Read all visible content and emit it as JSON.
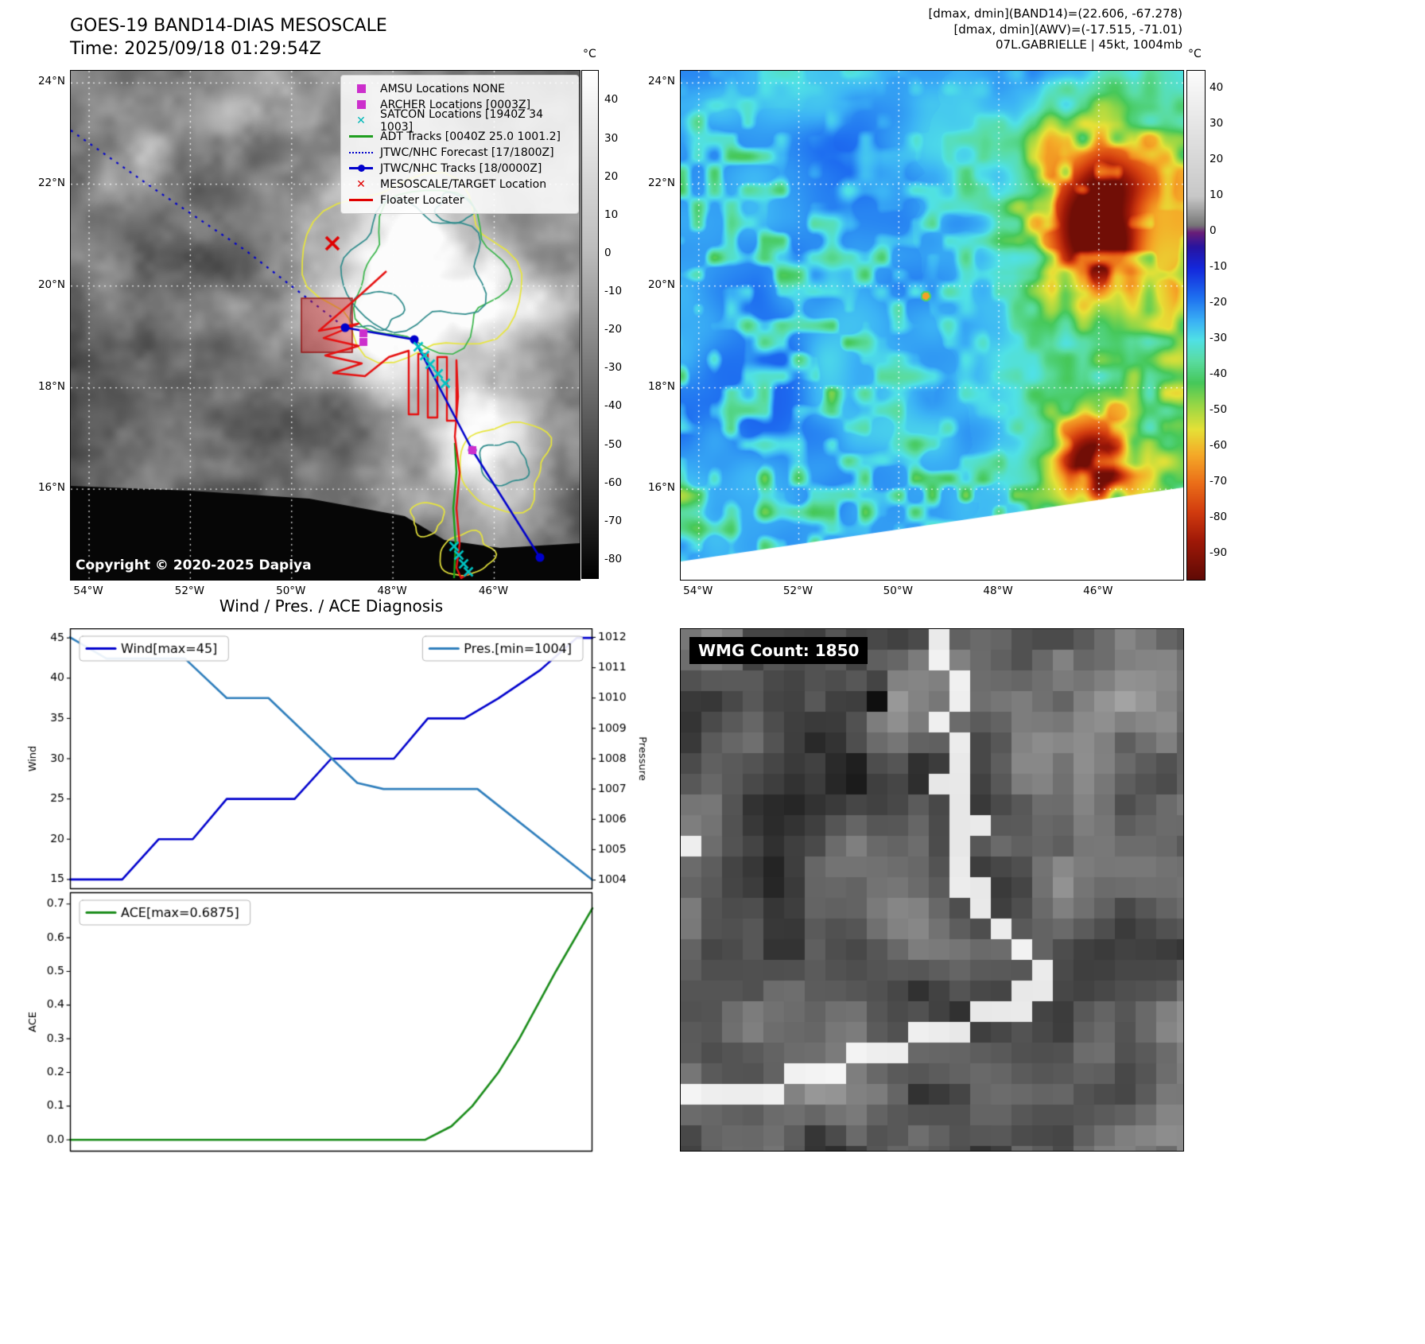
{
  "band14_panel": {
    "title_line1": "GOES-19 BAND14-DIAS MESOSCALE",
    "title_line2": "Time: 2025/09/18 01:29:54Z",
    "copyright": "Copyright © 2020-2025 Dapiya",
    "colorbar": {
      "unit": "°C",
      "ticks": [
        40,
        30,
        20,
        10,
        0,
        -10,
        -20,
        -30,
        -40,
        -50,
        -60,
        -70,
        -80
      ],
      "top_value": 48,
      "bottom_value": -85,
      "top_color": "#ffffff",
      "bottom_color": "#000000"
    },
    "lat_labels": [
      "24°N",
      "22°N",
      "20°N",
      "18°N",
      "16°N"
    ],
    "lon_labels": [
      "54°W",
      "52°W",
      "50°W",
      "48°W",
      "46°W"
    ],
    "legend": [
      {
        "label": "AMSU Locations NONE",
        "marker": "square",
        "color": "#cc2fcc"
      },
      {
        "label": "ARCHER Locations [0003Z]",
        "marker": "square",
        "color": "#cc2fcc"
      },
      {
        "label": "SATCON Locations [1940Z 34 1003]",
        "marker": "x",
        "color": "#00b8b8"
      },
      {
        "label": "ADT Tracks [0040Z 25.0 1001.2]",
        "marker": "line",
        "color": "#1f9e1f"
      },
      {
        "label": "JTWC/NHC Forecast [17/1800Z]",
        "marker": "dotted",
        "color": "#0000cc"
      },
      {
        "label": "JTWC/NHC Tracks [18/0000Z]",
        "marker": "line-dot",
        "color": "#0000cc"
      },
      {
        "label": "MESOSCALE/TARGET Location",
        "marker": "x",
        "color": "#e00000"
      },
      {
        "label": "Floater Locater",
        "marker": "line",
        "color": "#e00000"
      }
    ]
  },
  "awv_panel": {
    "header_line1": "[dmax, dmin](BAND14)=(22.606, -67.278)",
    "header_line2": "[dmax, dmin](AWV)=(-17.515, -71.01)",
    "header_line3": "07L.GABRIELLE | 45kt, 1004mb",
    "colorbar": {
      "unit": "°C",
      "ticks": [
        40,
        30,
        20,
        10,
        0,
        -10,
        -20,
        -30,
        -40,
        -50,
        -60,
        -70,
        -80,
        -90
      ],
      "top_value": 45,
      "bottom_value": -97
    },
    "colormap_stops": [
      [
        45,
        "#fcfcfc"
      ],
      [
        10,
        "#c8c8c8"
      ],
      [
        2,
        "#787878"
      ],
      [
        0,
        "#6a1e78"
      ],
      [
        -4,
        "#2814a0"
      ],
      [
        -10,
        "#1428dc"
      ],
      [
        -18,
        "#1e6ef0"
      ],
      [
        -25,
        "#3cb4f5"
      ],
      [
        -30,
        "#50e1e6"
      ],
      [
        -36,
        "#5adca0"
      ],
      [
        -42,
        "#46c85a"
      ],
      [
        -48,
        "#96d746"
      ],
      [
        -55,
        "#e6e137"
      ],
      [
        -62,
        "#f5aa28"
      ],
      [
        -70,
        "#eb6e19"
      ],
      [
        -78,
        "#d23c0f"
      ],
      [
        -86,
        "#a01908"
      ],
      [
        -97,
        "#5f0a05"
      ]
    ],
    "lat_labels": [
      "24°N",
      "22°N",
      "20°N",
      "18°N",
      "16°N"
    ],
    "lon_labels": [
      "54°W",
      "52°W",
      "50°W",
      "48°W",
      "46°W"
    ]
  },
  "wmg_panel": {
    "overlay_text": "WMG Count: 1850"
  },
  "chart_data": [
    {
      "type": "line",
      "title": "Wind / Pres. / ACE Diagnosis",
      "ylabel_left": "Wind",
      "ylabel_right": "Pressure",
      "yticks_left": [
        15,
        20,
        25,
        30,
        35,
        40,
        45
      ],
      "ytick_decimals_left": 0,
      "yticks_right": [
        1004,
        1005,
        1006,
        1007,
        1008,
        1009,
        1010,
        1011,
        1012
      ],
      "ylim_left": [
        13.8,
        46.2
      ],
      "ylim_right": [
        1003.7,
        1012.3
      ],
      "grid": false,
      "series": [
        {
          "name": "Wind[max=45]",
          "color": "#0000cd",
          "axis": "left",
          "x": [
            0,
            0.1,
            0.17,
            0.235,
            0.3,
            0.43,
            0.5,
            0.62,
            0.685,
            0.755,
            0.82,
            0.9,
            0.97,
            1.0
          ],
          "y": [
            15,
            15,
            20,
            20,
            25,
            25,
            30,
            30,
            35,
            35,
            37.5,
            41,
            45,
            45
          ]
        },
        {
          "name": "Pres.[min=1004]",
          "color": "#2e7ebc",
          "axis": "right",
          "x": [
            0,
            0.07,
            0.22,
            0.3,
            0.38,
            0.55,
            0.6,
            0.78,
            1.0
          ],
          "y": [
            1012,
            1011.3,
            1011.3,
            1010,
            1010,
            1007.2,
            1007,
            1007,
            1004
          ]
        }
      ]
    },
    {
      "type": "line",
      "ylabel_left": "ACE",
      "yticks_left": [
        0.0,
        0.1,
        0.2,
        0.3,
        0.4,
        0.5,
        0.6,
        0.7
      ],
      "ytick_decimals_left": 1,
      "ylim_left": [
        -0.035,
        0.735
      ],
      "grid": false,
      "series": [
        {
          "name": "ACE[max=0.6875]",
          "color": "#1a8c1a",
          "axis": "left",
          "x": [
            0,
            0.68,
            0.73,
            0.77,
            0.82,
            0.86,
            0.93,
            1.0
          ],
          "y": [
            0,
            0,
            0.04,
            0.1,
            0.2,
            0.3,
            0.5,
            0.6875
          ]
        }
      ]
    }
  ]
}
